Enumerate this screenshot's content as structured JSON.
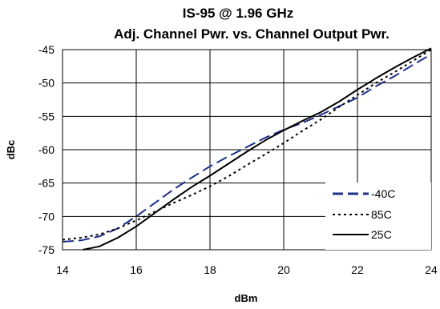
{
  "chart_data": {
    "type": "line",
    "title": "IS-95 @ 1.96 GHz",
    "subtitle": "Adj. Channel Pwr. vs. Channel Output Pwr.",
    "xlabel": "dBm",
    "ylabel": "dBc",
    "xlim": [
      14,
      24
    ],
    "ylim": [
      -75,
      -45
    ],
    "xticks": [
      14,
      16,
      18,
      20,
      22,
      24
    ],
    "yticks": [
      -45,
      -50,
      -55,
      -60,
      -65,
      -70,
      -75
    ],
    "grid": true,
    "legend_position": "bottom-right",
    "series": [
      {
        "name": "-40C",
        "style": "dashed",
        "color": "#1f2f8a",
        "x": [
          14,
          14.5,
          15,
          15.5,
          16,
          16.5,
          17,
          17.5,
          18,
          18.5,
          19,
          19.5,
          20,
          20.5,
          21,
          21.5,
          22,
          22.5,
          23,
          23.5,
          24
        ],
        "y": [
          -73.8,
          -73.6,
          -73.0,
          -71.8,
          -70.0,
          -68.0,
          -66.0,
          -64.2,
          -62.5,
          -61.0,
          -59.6,
          -58.2,
          -57.0,
          -56.0,
          -54.8,
          -53.5,
          -52.2,
          -50.5,
          -49.0,
          -47.3,
          -45.7
        ]
      },
      {
        "name": "85C",
        "style": "dotted",
        "color": "#000000",
        "x": [
          14,
          14.5,
          15,
          15.5,
          16,
          16.5,
          17,
          17.5,
          18,
          18.5,
          19,
          19.5,
          20,
          20.5,
          21,
          21.5,
          22,
          22.5,
          23,
          23.5,
          24
        ],
        "y": [
          -73.5,
          -73.2,
          -72.7,
          -71.8,
          -70.6,
          -69.3,
          -68.0,
          -66.8,
          -65.5,
          -64.0,
          -62.3,
          -60.7,
          -59.0,
          -57.2,
          -55.5,
          -53.6,
          -51.8,
          -50.0,
          -48.4,
          -46.7,
          -45.0
        ]
      },
      {
        "name": "25C",
        "style": "solid",
        "color": "#000000",
        "x": [
          14.55,
          15,
          15.5,
          16,
          16.5,
          17,
          17.5,
          18,
          18.5,
          19,
          19.5,
          20,
          20.5,
          21,
          21.5,
          22,
          22.5,
          23,
          23.5,
          24
        ],
        "y": [
          -75.0,
          -74.5,
          -73.2,
          -71.5,
          -69.5,
          -67.5,
          -65.6,
          -63.9,
          -62.1,
          -60.3,
          -58.6,
          -57.1,
          -55.7,
          -54.4,
          -52.8,
          -51.0,
          -49.3,
          -47.7,
          -46.2,
          -44.8
        ]
      }
    ]
  }
}
